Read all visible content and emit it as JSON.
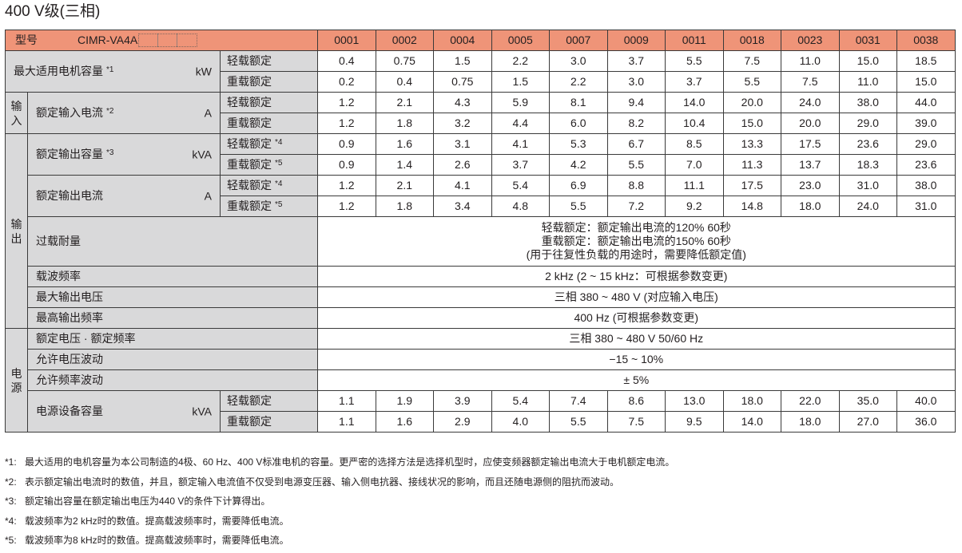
{
  "title": "400 V级(三相)",
  "header": {
    "model_label": "型号",
    "model_code": "CIMR-VA4A",
    "columns": [
      "0001",
      "0002",
      "0004",
      "0005",
      "0007",
      "0009",
      "0011",
      "0018",
      "0023",
      "0031",
      "0038"
    ]
  },
  "ratings": {
    "light": "轻载额定",
    "heavy": "重载额定"
  },
  "sections": {
    "input": "输入",
    "output": "输出",
    "power": "电源"
  },
  "motor_capacity": {
    "label": "最大适用电机容量",
    "note": "*1",
    "unit": "kW",
    "light": [
      "0.4",
      "0.75",
      "1.5",
      "2.2",
      "3.0",
      "3.7",
      "5.5",
      "7.5",
      "11.0",
      "15.0",
      "18.5"
    ],
    "heavy": [
      "0.2",
      "0.4",
      "0.75",
      "1.5",
      "2.2",
      "3.0",
      "3.7",
      "5.5",
      "7.5",
      "11.0",
      "15.0"
    ]
  },
  "input_current": {
    "label": "额定输入电流",
    "note": "*2",
    "unit": "A",
    "light": [
      "1.2",
      "2.1",
      "4.3",
      "5.9",
      "8.1",
      "9.4",
      "14.0",
      "20.0",
      "24.0",
      "38.0",
      "44.0"
    ],
    "heavy": [
      "1.2",
      "1.8",
      "3.2",
      "4.4",
      "6.0",
      "8.2",
      "10.4",
      "15.0",
      "20.0",
      "29.0",
      "39.0"
    ]
  },
  "output_capacity": {
    "label": "额定输出容量",
    "note": "*3",
    "unit": "kVA",
    "light_note": "*4",
    "heavy_note": "*5",
    "light": [
      "0.9",
      "1.6",
      "3.1",
      "4.1",
      "5.3",
      "6.7",
      "8.5",
      "13.3",
      "17.5",
      "23.6",
      "29.0"
    ],
    "heavy": [
      "0.9",
      "1.4",
      "2.6",
      "3.7",
      "4.2",
      "5.5",
      "7.0",
      "11.3",
      "13.7",
      "18.3",
      "23.6"
    ]
  },
  "output_current": {
    "label": "额定输出电流",
    "unit": "A",
    "light_note": "*4",
    "heavy_note": "*5",
    "light": [
      "1.2",
      "2.1",
      "4.1",
      "5.4",
      "6.9",
      "8.8",
      "11.1",
      "17.5",
      "23.0",
      "31.0",
      "38.0"
    ],
    "heavy": [
      "1.2",
      "1.8",
      "3.4",
      "4.8",
      "5.5",
      "7.2",
      "9.2",
      "14.8",
      "18.0",
      "24.0",
      "31.0"
    ]
  },
  "overload": {
    "label": "过载耐量",
    "lines": [
      "轻载额定：额定输出电流的120%  60秒",
      "重载额定：额定输出电流的150%  60秒",
      "(用于往复性负载的用途时，需要降低额定值)"
    ]
  },
  "carrier_freq": {
    "label": "载波频率",
    "value": "2 kHz (2 ~ 15 kHz：可根据参数变更)"
  },
  "max_output_voltage": {
    "label": "最大输出电压",
    "value": "三相 380 ~ 480 V (对应输入电压)"
  },
  "max_output_freq": {
    "label": "最高输出频率",
    "value": "400 Hz (可根据参数变更)"
  },
  "rated_voltage_freq": {
    "label": "额定电压 · 额定频率",
    "value": "三相 380 ~ 480 V   50/60 Hz"
  },
  "voltage_fluctuation": {
    "label": "允许电压波动",
    "value": "−15 ~ 10%"
  },
  "freq_fluctuation": {
    "label": "允许频率波动",
    "value": "± 5%"
  },
  "power_capacity": {
    "label": "电源设备容量",
    "unit": "kVA",
    "light": [
      "1.1",
      "1.9",
      "3.9",
      "5.4",
      "7.4",
      "8.6",
      "13.0",
      "18.0",
      "22.0",
      "35.0",
      "40.0"
    ],
    "heavy": [
      "1.1",
      "1.6",
      "2.9",
      "4.0",
      "5.5",
      "7.5",
      "9.5",
      "14.0",
      "18.0",
      "27.0",
      "36.0"
    ]
  },
  "footnotes": [
    {
      "mark": "*1:",
      "text": "最大适用的电机容量为本公司制造的4极、60 Hz、400 V标准电机的容量。更严密的选择方法是选择机型时，应使变频器额定输出电流大于电机额定电流。"
    },
    {
      "mark": "*2:",
      "text": "表示额定输出电流时的数值，并且，额定输入电流值不仅受到电源变压器、输入侧电抗器、接线状况的影响，而且还随电源侧的阻抗而波动。"
    },
    {
      "mark": "*3:",
      "text": "额定输出容量在额定输出电压为440 V的条件下计算得出。"
    },
    {
      "mark": "*4:",
      "text": "载波频率为2 kHz时的数值。提高载波频率时，需要降低电流。"
    },
    {
      "mark": "*5:",
      "text": "载波频率为8 kHz时的数值。提高载波频率时，需要降低电流。"
    }
  ],
  "colors": {
    "header_bg": "#ef9478",
    "label_bg": "#d9d9da",
    "border": "#3a3a3a"
  }
}
